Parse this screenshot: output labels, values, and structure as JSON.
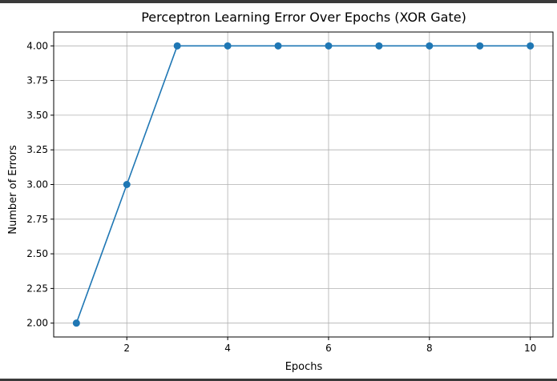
{
  "chart_data": {
    "type": "line",
    "title": "Perceptron Learning Error Over Epochs (XOR Gate)",
    "xlabel": "Epochs",
    "ylabel": "Number of Errors",
    "x": [
      1,
      2,
      3,
      4,
      5,
      6,
      7,
      8,
      9,
      10
    ],
    "series": [
      {
        "values": [
          2,
          3,
          4,
          4,
          4,
          4,
          4,
          4,
          4,
          4
        ],
        "color": "#1f77b4",
        "marker": "circle"
      }
    ],
    "xlim": [
      0.55,
      10.45
    ],
    "ylim": [
      1.9,
      4.1
    ],
    "xticks": [
      2,
      4,
      6,
      8,
      10
    ],
    "xtick_labels": [
      "2",
      "4",
      "6",
      "8",
      "10"
    ],
    "yticks": [
      2.0,
      2.25,
      2.5,
      2.75,
      3.0,
      3.25,
      3.5,
      3.75,
      4.0
    ],
    "ytick_labels": [
      "2.00",
      "2.25",
      "2.50",
      "2.75",
      "3.00",
      "3.25",
      "3.50",
      "3.75",
      "4.00"
    ],
    "grid": true
  }
}
